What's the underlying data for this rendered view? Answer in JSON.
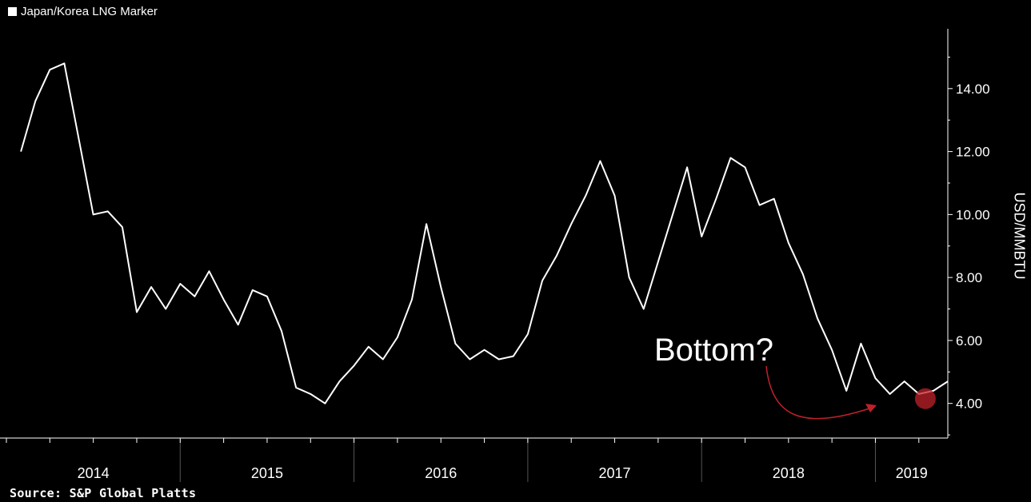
{
  "legend": {
    "label": "Japan/Korea LNG Marker"
  },
  "source": "Source: S&P Global Platts",
  "chart_data": {
    "type": "line",
    "title": "",
    "xlabel": "",
    "ylabel": "USD/MMBTU",
    "ylim": [
      2.9,
      15.9
    ],
    "yticks": [
      4.0,
      6.0,
      8.0,
      10.0,
      12.0,
      14.0
    ],
    "x_categories": [
      "2014",
      "2015",
      "2016",
      "2017",
      "2018",
      "2019"
    ],
    "grid": false,
    "legend_position": "top-left",
    "colors": {
      "background": "#000000",
      "line": "#ffffff",
      "annotation": "#c0202a"
    },
    "annotation": {
      "text": "Bottom?",
      "x": "2019-05",
      "y": 4.15
    },
    "series": [
      {
        "name": "Japan/Korea LNG Marker",
        "x": [
          "2014-02",
          "2014-03",
          "2014-04",
          "2014-05",
          "2014-06",
          "2014-07",
          "2014-08",
          "2014-09",
          "2014-10",
          "2014-11",
          "2014-12",
          "2015-01",
          "2015-02",
          "2015-03",
          "2015-04",
          "2015-05",
          "2015-06",
          "2015-07",
          "2015-08",
          "2015-09",
          "2015-10",
          "2015-11",
          "2015-12",
          "2016-01",
          "2016-02",
          "2016-03",
          "2016-04",
          "2016-05",
          "2016-06",
          "2016-07",
          "2016-08",
          "2016-09",
          "2016-10",
          "2016-11",
          "2016-12",
          "2017-01",
          "2017-02",
          "2017-03",
          "2017-04",
          "2017-05",
          "2017-06",
          "2017-07",
          "2017-08",
          "2017-09",
          "2017-10",
          "2017-11",
          "2017-12",
          "2018-01",
          "2018-02",
          "2018-03",
          "2018-04",
          "2018-05",
          "2018-06",
          "2018-07",
          "2018-08",
          "2018-09",
          "2018-10",
          "2018-11",
          "2018-12",
          "2019-01",
          "2019-02",
          "2019-03",
          "2019-04",
          "2019-05",
          "2019-06"
        ],
        "values": [
          12.0,
          13.6,
          14.6,
          14.8,
          12.4,
          10.0,
          10.1,
          9.6,
          6.9,
          7.7,
          7.0,
          7.8,
          7.4,
          8.2,
          7.3,
          6.5,
          7.6,
          7.4,
          6.3,
          4.5,
          4.3,
          4.0,
          4.7,
          5.2,
          5.8,
          5.4,
          6.1,
          7.3,
          9.7,
          7.7,
          5.9,
          5.4,
          5.7,
          5.4,
          5.5,
          6.2,
          7.9,
          8.7,
          9.7,
          10.6,
          11.7,
          10.6,
          8.0,
          7.0,
          8.5,
          10.0,
          11.5,
          9.3,
          10.5,
          11.8,
          11.5,
          10.3,
          10.5,
          9.1,
          8.1,
          6.7,
          5.7,
          4.4,
          5.9,
          4.8,
          4.3,
          4.7,
          4.3,
          4.4,
          4.7
        ]
      }
    ]
  }
}
